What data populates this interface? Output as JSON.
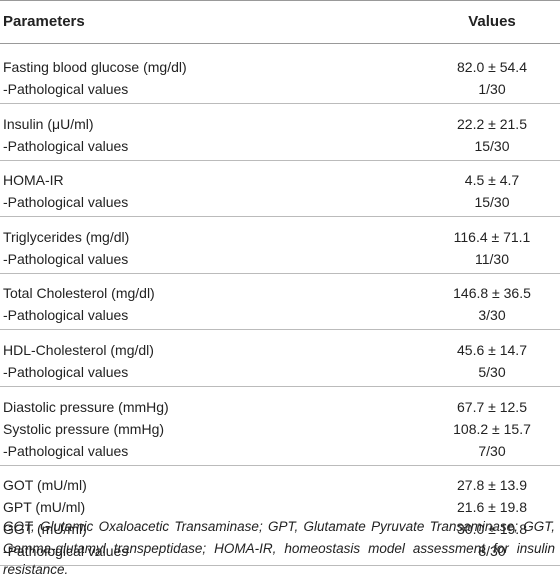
{
  "table": {
    "header": [
      "Parameters",
      "Values"
    ],
    "groups": [
      [
        [
          "Fasting blood glucose (mg/dl)",
          "82.0 ± 54.4"
        ],
        [
          "-Pathological values",
          "1/30"
        ]
      ],
      [
        [
          "Insulin (μU/ml)",
          "22.2 ± 21.5"
        ],
        [
          "-Pathological values",
          "15/30"
        ]
      ],
      [
        [
          "HOMA-IR",
          "4.5 ± 4.7"
        ],
        [
          "-Pathological values",
          "15/30"
        ]
      ],
      [
        [
          "Triglycerides (mg/dl)",
          "116.4 ± 71.1"
        ],
        [
          "-Pathological values",
          "11/30"
        ]
      ],
      [
        [
          "Total Cholesterol (mg/dl)",
          "146.8 ± 36.5"
        ],
        [
          "-Pathological values",
          "3/30"
        ]
      ],
      [
        [
          "HDL-Cholesterol (mg/dl)",
          "45.6 ± 14.7"
        ],
        [
          "-Pathological values",
          "5/30"
        ]
      ],
      [
        [
          "Diastolic pressure (mmHg)",
          "67.7 ± 12.5"
        ],
        [
          "Systolic pressure (mmHg)",
          "108.2 ± 15.7"
        ],
        [
          "-Pathological values",
          "7/30"
        ]
      ],
      [
        [
          "GOT (mU/ml)",
          "27.8 ± 13.9"
        ],
        [
          "GPT (mU/ml)",
          "21.6 ± 19.8"
        ],
        [
          "GGT (mU/ml)",
          "30.0 ± 19.8"
        ],
        [
          "-Pathological values",
          "8/30"
        ]
      ]
    ],
    "footnote": "GOT, Glutamic Oxaloacetic Transaminase; GPT, Glutamate Pyruvate Transaminase; GGT, Gamma-glutamyl transpeptidase; HOMA-IR, homeostasis model assessment for insulin resistance."
  }
}
